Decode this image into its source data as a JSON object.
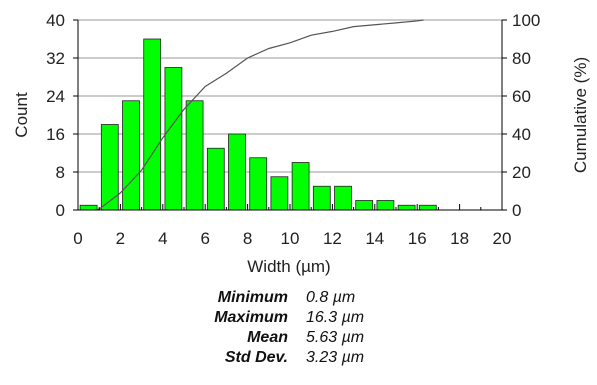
{
  "chart_data": {
    "type": "bar",
    "xlabel": "Width (µm)",
    "ylabel": "Count",
    "y2label": "Cumulative (%)",
    "xlim": [
      0,
      20
    ],
    "ylim": [
      0,
      40
    ],
    "y2lim": [
      0,
      100
    ],
    "x_ticks": [
      0,
      2,
      4,
      6,
      8,
      10,
      12,
      14,
      16,
      18,
      20
    ],
    "y_ticks": [
      0,
      8,
      16,
      24,
      32,
      40
    ],
    "y2_ticks": [
      0,
      20,
      40,
      60,
      80,
      100
    ],
    "bar_color": "#00ff00",
    "bin_width": 1,
    "bins": [
      {
        "x": 0.5,
        "count": 1
      },
      {
        "x": 1.5,
        "count": 18
      },
      {
        "x": 2.5,
        "count": 23
      },
      {
        "x": 3.5,
        "count": 36
      },
      {
        "x": 4.5,
        "count": 30
      },
      {
        "x": 5.5,
        "count": 23
      },
      {
        "x": 6.5,
        "count": 13
      },
      {
        "x": 7.5,
        "count": 16
      },
      {
        "x": 8.5,
        "count": 11
      },
      {
        "x": 9.5,
        "count": 7
      },
      {
        "x": 10.5,
        "count": 10
      },
      {
        "x": 11.5,
        "count": 5
      },
      {
        "x": 12.5,
        "count": 5
      },
      {
        "x": 13.5,
        "count": 2
      },
      {
        "x": 14.5,
        "count": 2
      },
      {
        "x": 15.5,
        "count": 1
      },
      {
        "x": 16.5,
        "count": 1
      }
    ],
    "cumulative": {
      "x": [
        0.8,
        1,
        2,
        3,
        4,
        5,
        6,
        7,
        8,
        9,
        10,
        11,
        12,
        13,
        14,
        15,
        16,
        16.3
      ],
      "y": [
        0,
        0.5,
        9,
        21,
        38,
        53,
        65,
        72,
        80,
        85,
        88,
        92,
        94,
        96.5,
        97.5,
        98.5,
        99.5,
        100
      ]
    }
  },
  "stats": [
    {
      "name": "Minimum",
      "value": "0.8 µm"
    },
    {
      "name": "Maximum",
      "value": "16.3 µm"
    },
    {
      "name": "Mean",
      "value": "5.63 µm"
    },
    {
      "name": "Std Dev.",
      "value": "3.23 µm"
    }
  ]
}
